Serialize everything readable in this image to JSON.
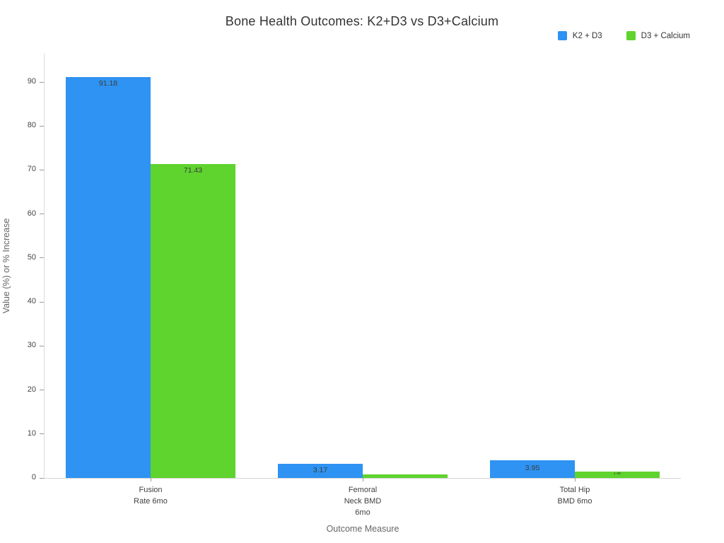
{
  "title": "Bone Health Outcomes: K2+D3 vs D3+Calcium",
  "legend": {
    "items": [
      {
        "label": "K2 + D3",
        "color": "#2e93f2"
      },
      {
        "label": "D3 + Calcium",
        "color": "#5fd32e"
      }
    ]
  },
  "axes": {
    "x_title": "Outcome Measure",
    "y_title": "Value (%) or % Increase"
  },
  "chart_data": {
    "type": "bar",
    "title": "Bone Health Outcomes: K2+D3 vs D3+Calcium",
    "xlabel": "Outcome Measure",
    "ylabel": "Value (%) or % Increase",
    "categories": [
      "Fusion Rate 6mo",
      "Femoral Neck BMD 6mo",
      "Total Hip BMD 6mo"
    ],
    "category_label_lines": [
      [
        "Fusion",
        "Rate 6mo"
      ],
      [
        "Femoral",
        "Neck BMD",
        "6mo"
      ],
      [
        "Total Hip",
        "BMD 6mo"
      ]
    ],
    "series": [
      {
        "name": "K2 + D3",
        "color": "#2e93f2",
        "values": [
          91.18,
          3.17,
          3.95
        ],
        "labels": [
          "91.18",
          "3.17",
          "3.95"
        ]
      },
      {
        "name": "D3 + Calcium",
        "color": "#5fd32e",
        "values": [
          71.43,
          0.88,
          1.48
        ],
        "labels": [
          "71.43",
          "",
          "1.48"
        ]
      }
    ],
    "yticks": [
      0,
      10,
      20,
      30,
      40,
      50,
      60,
      70,
      80,
      90
    ],
    "ylim": [
      0,
      96.6
    ],
    "grid": false,
    "legend_position": "top-right",
    "bar_value_label_color": "#3c3c3c"
  }
}
